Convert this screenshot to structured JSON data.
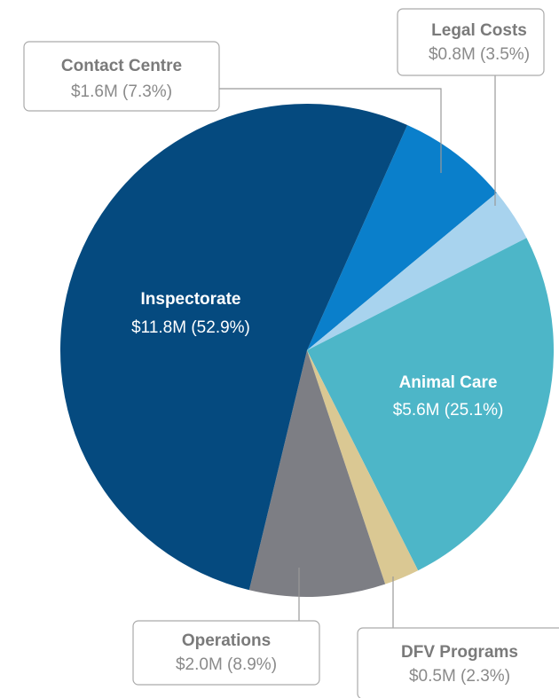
{
  "chart_data": {
    "type": "pie",
    "categories": [
      "Contact Centre",
      "Legal Costs",
      "Animal Care",
      "DFV Programs",
      "Operations",
      "Inspectorate"
    ],
    "values": [
      7.3,
      3.5,
      25.1,
      2.3,
      8.9,
      52.9
    ],
    "value_labels": [
      "$1.6M (7.3%)",
      "$0.8M (3.5%)",
      "$5.6M (25.1%)",
      "$0.5M (2.3%)",
      "$2.0M (8.9%)",
      "$11.8M (52.9%)"
    ],
    "colors": [
      "#0a7fcb",
      "#a8d3ee",
      "#4db6c8",
      "#dac893",
      "#7d7e84",
      "#054a7f"
    ]
  }
}
